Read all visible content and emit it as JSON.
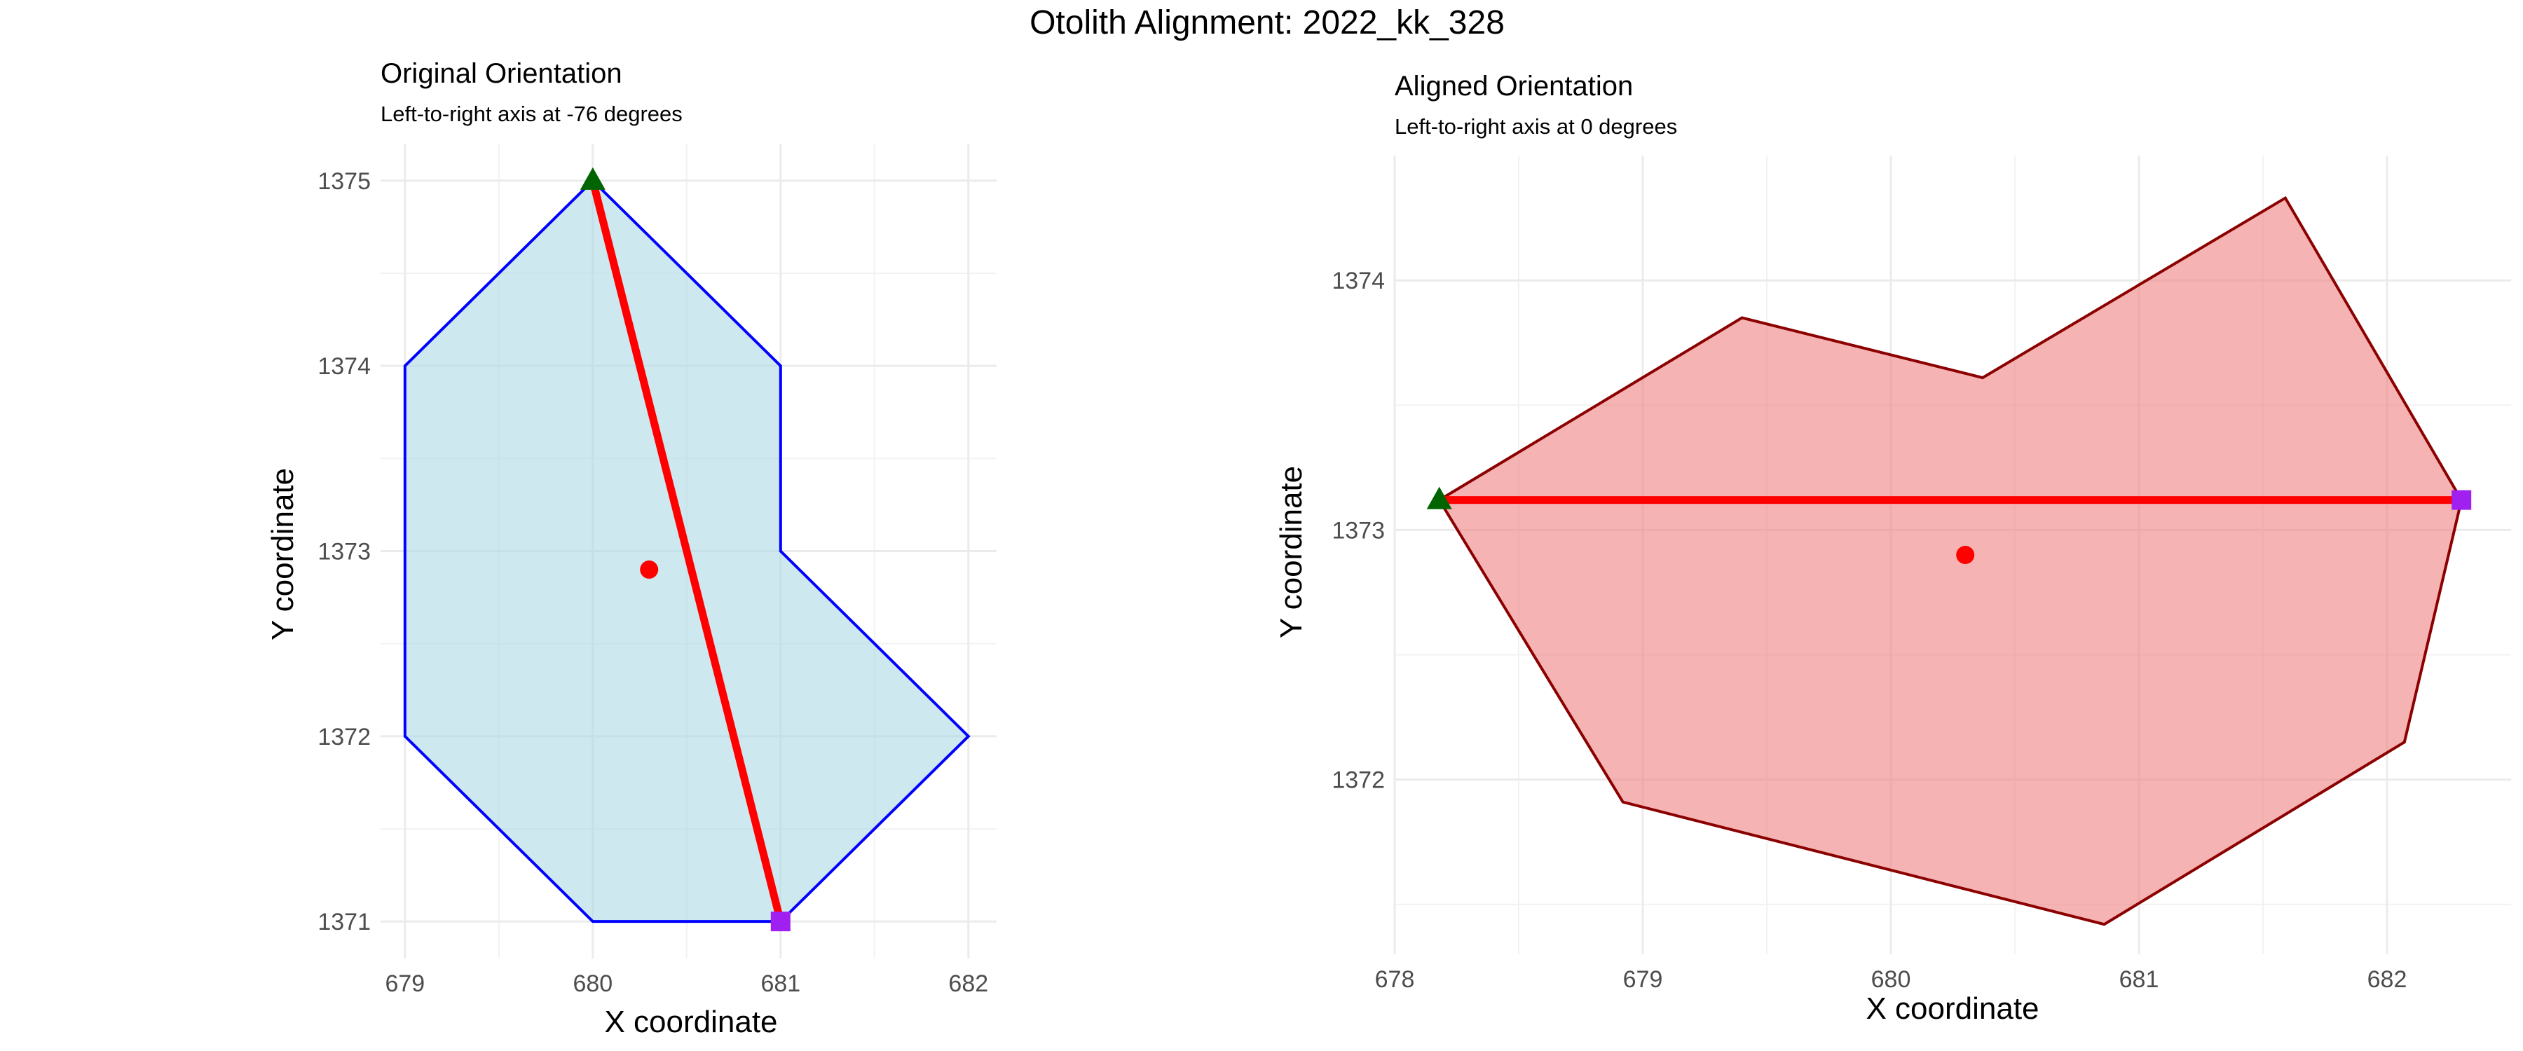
{
  "figure_title": "Otolith Alignment: 2022_kk_328",
  "chart_data": [
    {
      "type": "polygon",
      "title": "Original Orientation",
      "subtitle": "Left-to-right axis at -76 degrees",
      "xlabel": "X coordinate",
      "ylabel": "Y coordinate",
      "xlim": [
        678.87,
        682.15
      ],
      "ylim": [
        1370.8,
        1375.2
      ],
      "x_ticks": [
        679,
        680,
        681,
        682
      ],
      "y_ticks": [
        1371,
        1372,
        1373,
        1374,
        1375
      ],
      "grid": true,
      "colors": {
        "fill": "#add8e6",
        "outline": "#0000ff",
        "axis_line": "#ff0000",
        "centroid": "#ff0000",
        "start_marker": "#006400",
        "end_marker": "#a020f0"
      },
      "polygon": [
        [
          680,
          1375
        ],
        [
          681,
          1374
        ],
        [
          681,
          1373
        ],
        [
          682,
          1372
        ],
        [
          681,
          1371
        ],
        [
          680,
          1371
        ],
        [
          679,
          1372
        ],
        [
          679,
          1374
        ]
      ],
      "axis_line": [
        [
          680,
          1375
        ],
        [
          681,
          1371
        ]
      ],
      "centroid": [
        680.3,
        1372.9
      ],
      "start_point": [
        680,
        1375
      ],
      "end_point": [
        681,
        1371
      ]
    },
    {
      "type": "polygon",
      "title": "Aligned Orientation",
      "subtitle": "Left-to-right axis at 0 degrees",
      "xlabel": "X coordinate",
      "ylabel": "Y coordinate",
      "xlim": [
        678.0,
        682.5
      ],
      "ylim": [
        1371.3,
        1374.5
      ],
      "x_ticks": [
        678,
        679,
        680,
        681,
        682
      ],
      "y_ticks": [
        1372,
        1373,
        1374
      ],
      "grid": true,
      "colors": {
        "fill": "#f08080",
        "outline": "#8b0000",
        "axis_line": "#ff0000",
        "centroid": "#ff0000",
        "start_marker": "#006400",
        "end_marker": "#a020f0"
      },
      "polygon": [
        [
          678.18,
          1373.12
        ],
        [
          679.4,
          1373.85
        ],
        [
          680.37,
          1373.61
        ],
        [
          681.59,
          1374.33
        ],
        [
          682.3,
          1373.12
        ],
        [
          682.07,
          1372.15
        ],
        [
          680.86,
          1371.42
        ],
        [
          678.92,
          1371.91
        ]
      ],
      "axis_line": [
        [
          678.18,
          1373.12
        ],
        [
          682.3,
          1373.12
        ]
      ],
      "centroid": [
        680.3,
        1372.9
      ],
      "start_point": [
        678.18,
        1373.12
      ],
      "end_point": [
        682.3,
        1373.12
      ]
    }
  ]
}
